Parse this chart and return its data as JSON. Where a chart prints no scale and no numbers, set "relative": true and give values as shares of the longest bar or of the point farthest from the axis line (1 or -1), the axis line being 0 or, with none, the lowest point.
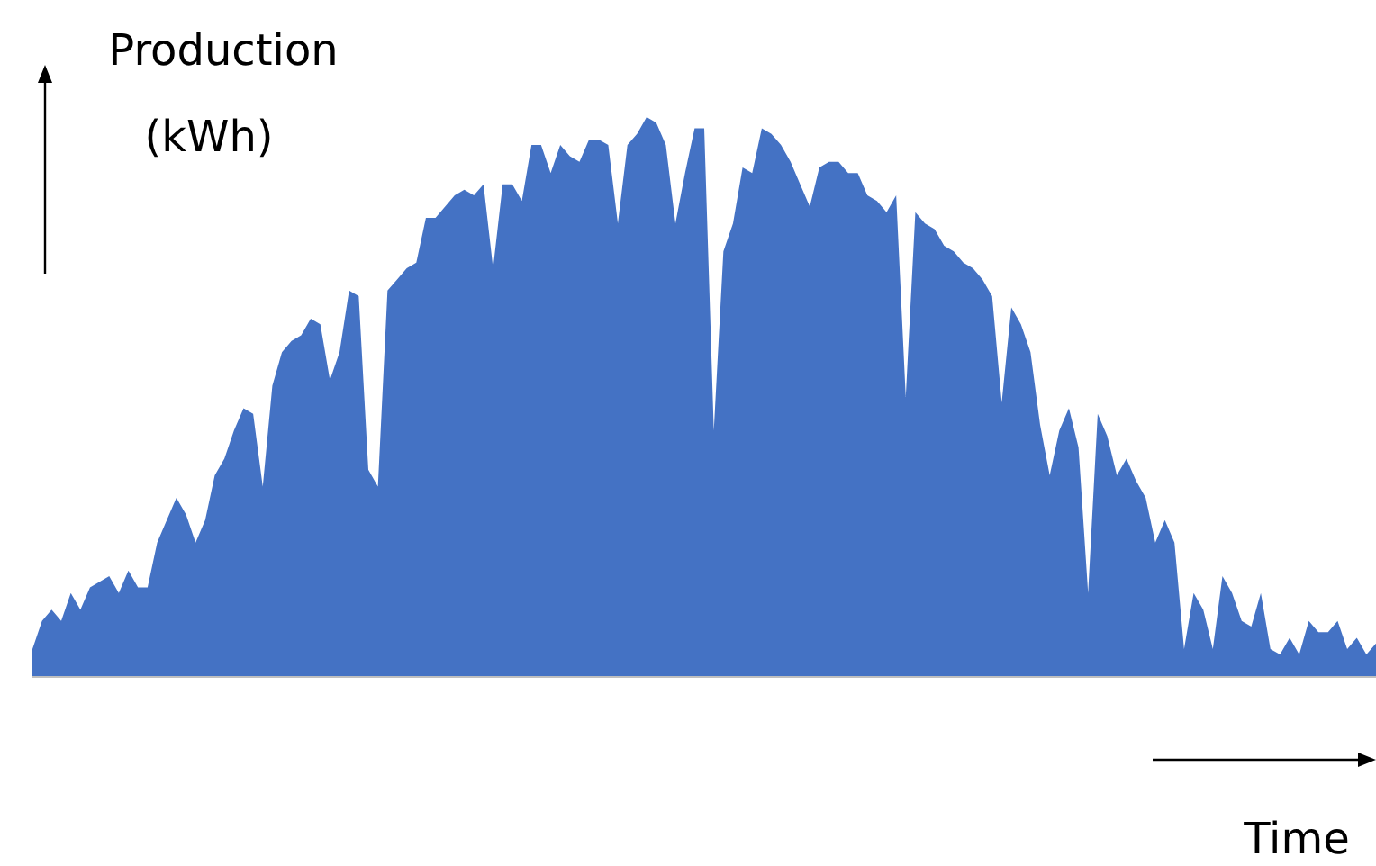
{
  "chart_data": {
    "type": "area",
    "relative": true,
    "xlabel": "Time",
    "ylabel": "Production (kWh)",
    "series": [
      {
        "color": "#4472c4",
        "values": [
          0.05,
          0.1,
          0.12,
          0.1,
          0.15,
          0.12,
          0.16,
          0.17,
          0.18,
          0.15,
          0.19,
          0.16,
          0.16,
          0.24,
          0.28,
          0.32,
          0.29,
          0.24,
          0.28,
          0.36,
          0.39,
          0.44,
          0.48,
          0.47,
          0.34,
          0.52,
          0.58,
          0.6,
          0.61,
          0.64,
          0.63,
          0.53,
          0.58,
          0.69,
          0.68,
          0.37,
          0.34,
          0.69,
          0.71,
          0.73,
          0.74,
          0.82,
          0.82,
          0.84,
          0.86,
          0.87,
          0.86,
          0.88,
          0.73,
          0.88,
          0.88,
          0.85,
          0.95,
          0.95,
          0.9,
          0.95,
          0.93,
          0.92,
          0.96,
          0.96,
          0.95,
          0.81,
          0.95,
          0.97,
          1,
          0.99,
          0.95,
          0.81,
          0.9,
          0.98,
          0.98,
          0.44,
          0.76,
          0.81,
          0.91,
          0.9,
          0.98,
          0.97,
          0.95,
          0.92,
          0.88,
          0.84,
          0.91,
          0.92,
          0.92,
          0.9,
          0.9,
          0.86,
          0.85,
          0.83,
          0.86,
          0.5,
          0.83,
          0.81,
          0.8,
          0.77,
          0.76,
          0.74,
          0.73,
          0.71,
          0.68,
          0.49,
          0.66,
          0.63,
          0.58,
          0.45,
          0.36,
          0.44,
          0.48,
          0.41,
          0.15,
          0.47,
          0.43,
          0.36,
          0.39,
          0.35,
          0.32,
          0.24,
          0.28,
          0.24,
          0.05,
          0.15,
          0.12,
          0.05,
          0.18,
          0.15,
          0.1,
          0.09,
          0.15,
          0.05,
          0.04,
          0.07,
          0.04,
          0.1,
          0.08,
          0.08,
          0.1,
          0.05,
          0.07,
          0.04,
          0.06
        ]
      }
    ]
  }
}
